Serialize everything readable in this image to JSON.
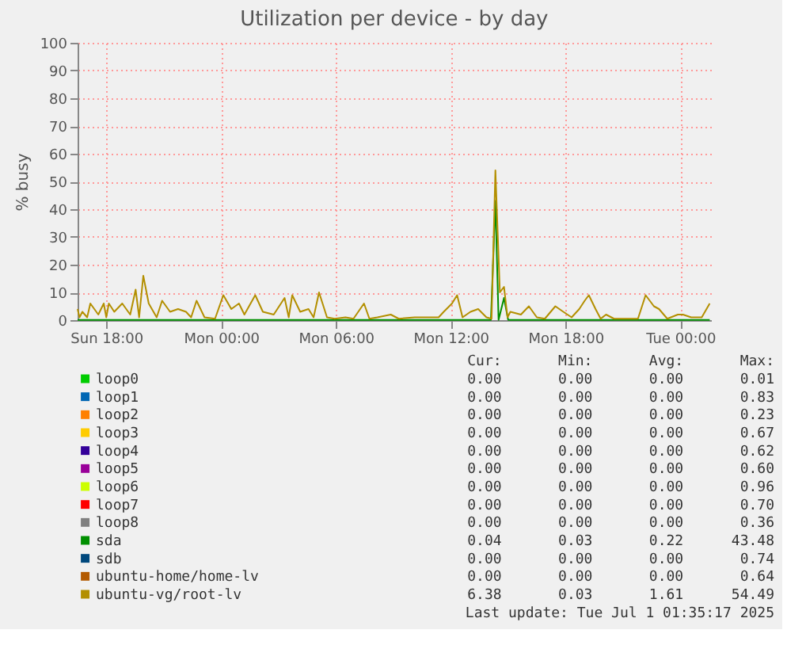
{
  "chart_data": {
    "type": "line",
    "title": "Utilization per device - by day",
    "ylabel": "% busy",
    "xlim": [
      "2025-06-29T16:30",
      "2025-07-01T01:36"
    ],
    "ylim": [
      0,
      100
    ],
    "xticks": [
      {
        "value": "2025-06-29T18:00",
        "label": "Sun 18:00"
      },
      {
        "value": "2025-06-30T00:00",
        "label": "Mon 00:00"
      },
      {
        "value": "2025-06-30T06:00",
        "label": "Mon 06:00"
      },
      {
        "value": "2025-06-30T12:00",
        "label": "Mon 12:00"
      },
      {
        "value": "2025-06-30T18:00",
        "label": "Mon 18:00"
      },
      {
        "value": "2025-07-01T00:00",
        "label": "Tue 00:00"
      }
    ],
    "yticks": [
      0,
      10,
      20,
      30,
      40,
      50,
      60,
      70,
      80,
      90,
      100
    ],
    "grid": true,
    "legend": "bottom",
    "marker": "none",
    "line_style": "solid",
    "series": [
      {
        "name": "loop0",
        "color": "#00cc00"
      },
      {
        "name": "loop1",
        "color": "#0066b3"
      },
      {
        "name": "loop2",
        "color": "#ff8000"
      },
      {
        "name": "loop3",
        "color": "#ffcc00"
      },
      {
        "name": "loop4",
        "color": "#330099"
      },
      {
        "name": "loop5",
        "color": "#990099"
      },
      {
        "name": "loop6",
        "color": "#ccff00"
      },
      {
        "name": "loop7",
        "color": "#ff0000"
      },
      {
        "name": "loop8",
        "color": "#808080"
      },
      {
        "name": "sda",
        "color": "#008f00",
        "x": [
          "2025-06-29T16:30",
          "2025-06-30T14:06",
          "2025-06-30T14:20",
          "2025-06-30T14:30",
          "2025-06-30T14:47",
          "2025-06-30T15:00",
          "2025-07-01T01:32"
        ],
        "values": [
          0.1,
          0.1,
          43,
          0.1,
          8,
          0.1,
          0.1
        ]
      },
      {
        "name": "sdb",
        "color": "#00487d"
      },
      {
        "name": "ubuntu-home/home-lv",
        "color": "#b35a00"
      },
      {
        "name": "ubuntu-vg/root-lv",
        "color": "#b38f00",
        "x": [
          "2025-06-29T16:30",
          "2025-06-29T16:36",
          "2025-06-29T16:45",
          "2025-06-29T17:00",
          "2025-06-29T17:10",
          "2025-06-29T17:35",
          "2025-06-29T17:52",
          "2025-06-29T18:00",
          "2025-06-29T18:08",
          "2025-06-29T18:25",
          "2025-06-29T18:50",
          "2025-06-29T19:15",
          "2025-06-29T19:32",
          "2025-06-29T19:43",
          "2025-06-29T19:56",
          "2025-06-29T20:13",
          "2025-06-29T20:38",
          "2025-06-29T20:55",
          "2025-06-29T21:20",
          "2025-06-29T21:45",
          "2025-06-29T22:10",
          "2025-06-29T22:26",
          "2025-06-29T22:43",
          "2025-06-29T23:08",
          "2025-06-29T23:41",
          "2025-06-30T00:07",
          "2025-06-30T00:32",
          "2025-06-30T00:56",
          "2025-06-30T01:13",
          "2025-06-30T01:47",
          "2025-06-30T02:11",
          "2025-06-30T02:45",
          "2025-06-30T03:19",
          "2025-06-30T03:32",
          "2025-06-30T03:43",
          "2025-06-30T04:08",
          "2025-06-30T04:34",
          "2025-06-30T04:50",
          "2025-06-30T05:07",
          "2025-06-30T05:32",
          "2025-06-30T05:56",
          "2025-06-30T06:30",
          "2025-06-30T06:55",
          "2025-06-30T07:28",
          "2025-06-30T07:45",
          "2025-06-30T08:10",
          "2025-06-30T08:52",
          "2025-06-30T09:17",
          "2025-06-30T10:07",
          "2025-06-30T10:40",
          "2025-06-30T11:22",
          "2025-06-30T11:38",
          "2025-06-30T12:04",
          "2025-06-30T12:20",
          "2025-06-30T12:37",
          "2025-06-30T13:02",
          "2025-06-30T13:26",
          "2025-06-30T13:52",
          "2025-06-30T14:08",
          "2025-06-30T14:20",
          "2025-06-30T14:34",
          "2025-06-30T14:47",
          "2025-06-30T14:58",
          "2025-06-30T15:07",
          "2025-06-30T15:40",
          "2025-06-30T16:05",
          "2025-06-30T16:30",
          "2025-06-30T16:55",
          "2025-06-30T17:28",
          "2025-06-30T17:53",
          "2025-06-30T18:19",
          "2025-06-30T18:43",
          "2025-06-30T19:00",
          "2025-06-30T19:13",
          "2025-06-30T19:34",
          "2025-06-30T19:50",
          "2025-06-30T20:07",
          "2025-06-30T20:32",
          "2025-06-30T20:56",
          "2025-06-30T21:47",
          "2025-06-30T22:11",
          "2025-06-30T22:37",
          "2025-06-30T22:53",
          "2025-06-30T23:19",
          "2025-06-30T23:52",
          "2025-07-01T00:08",
          "2025-07-01T00:34",
          "2025-07-01T01:07",
          "2025-07-01T01:32"
        ],
        "values": [
          4,
          1,
          3,
          1,
          6,
          2,
          6,
          1,
          6,
          3,
          6,
          2,
          11,
          1,
          16,
          6,
          1,
          7,
          3,
          4,
          3,
          1,
          7,
          1,
          0.5,
          9,
          4,
          6,
          2,
          9,
          3,
          2,
          8,
          1,
          9,
          3,
          4,
          1,
          10,
          1,
          0.5,
          1,
          0.5,
          6,
          0.5,
          1,
          2,
          0.5,
          1,
          1,
          1,
          3,
          6,
          9,
          1,
          3,
          4,
          1,
          0.5,
          54,
          10,
          12,
          1,
          3,
          2,
          5,
          1,
          0.5,
          5,
          3,
          1,
          4,
          7,
          9,
          4,
          0.5,
          2,
          0.5,
          0.5,
          0.5,
          9,
          5,
          4,
          0.5,
          2,
          2,
          1,
          1,
          6
        ]
      }
    ],
    "annotations": [
      "Cur:",
      "Min:",
      "Avg:",
      "Max:",
      "0.00",
      "0.00",
      "0.00",
      "0.01",
      "0.00",
      "0.00",
      "0.00",
      "0.83",
      "0.00",
      "0.00",
      "0.00",
      "0.23",
      "0.00",
      "0.00",
      "0.00",
      "0.67",
      "0.00",
      "0.00",
      "0.00",
      "0.62",
      "0.00",
      "0.00",
      "0.00",
      "0.60",
      "0.00",
      "0.00",
      "0.00",
      "0.96",
      "0.00",
      "0.00",
      "0.00",
      "0.70",
      "0.00",
      "0.00",
      "0.00",
      "0.36",
      "0.04",
      "0.03",
      "0.22",
      "43.48",
      "0.00",
      "0.00",
      "0.00",
      "0.74",
      "0.00",
      "0.00",
      "0.00",
      "0.64",
      "6.38",
      "0.03",
      "1.61",
      "54.49",
      "Last update: Tue Jul  1 01:35:17 2025"
    ]
  }
}
